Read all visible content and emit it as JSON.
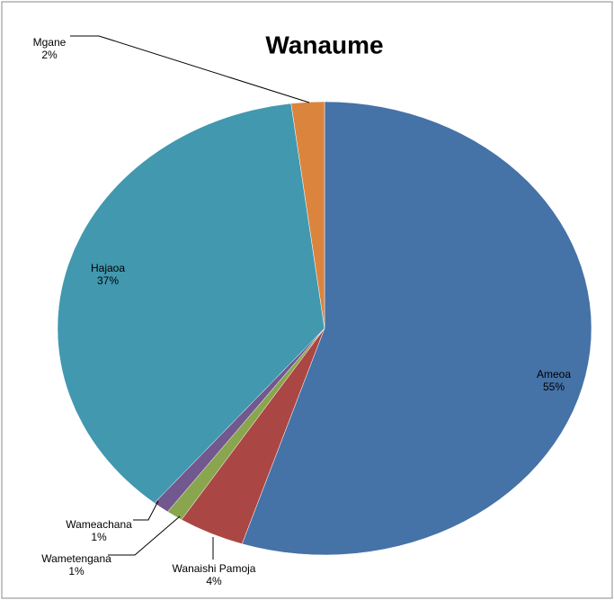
{
  "chart_data": {
    "type": "pie",
    "title": "Wanaume",
    "categories": [
      "Ameoa",
      "Wanaishi Pamoja",
      "Wametengana",
      "Wameachana",
      "Hajaoa",
      "Mgane"
    ],
    "values": [
      55,
      4,
      1,
      1,
      37,
      2
    ],
    "value_labels": [
      "55%",
      "4%",
      "1%",
      "1%",
      "37%",
      "2%"
    ],
    "colors": [
      "#4572a7",
      "#aa4643",
      "#89a54e",
      "#71588f",
      "#4198af",
      "#db843d"
    ]
  }
}
